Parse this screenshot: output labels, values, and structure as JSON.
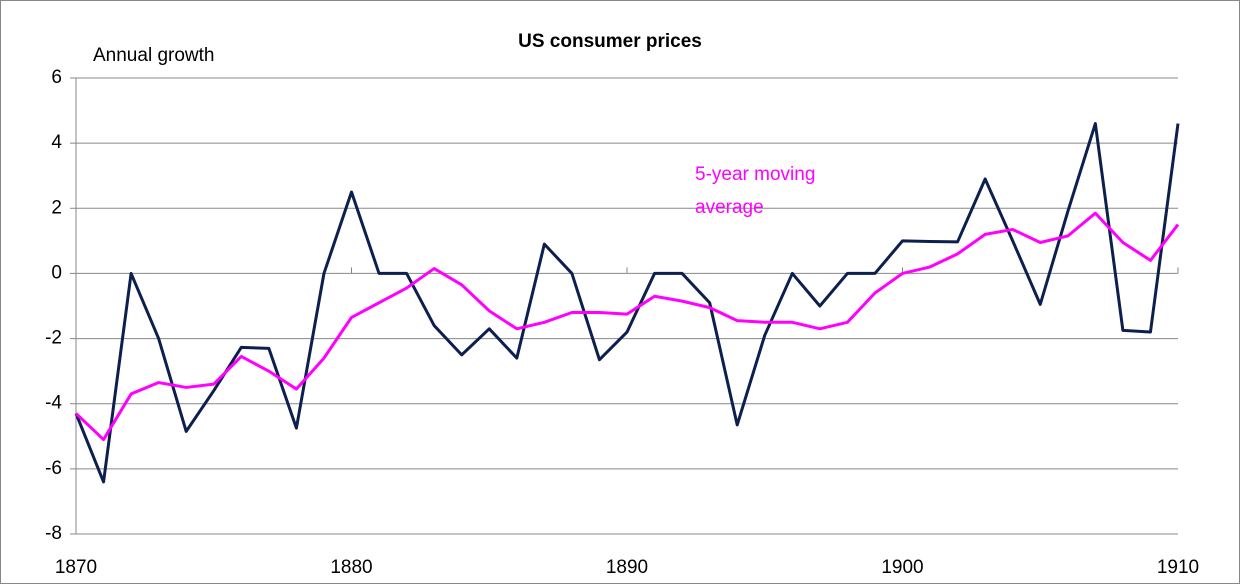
{
  "chart_data": {
    "type": "line",
    "title": "US consumer prices",
    "y_label": "Annual growth",
    "x": [
      1870,
      1871,
      1872,
      1873,
      1874,
      1875,
      1876,
      1877,
      1878,
      1879,
      1880,
      1881,
      1882,
      1883,
      1884,
      1885,
      1886,
      1887,
      1888,
      1889,
      1890,
      1891,
      1892,
      1893,
      1894,
      1895,
      1896,
      1897,
      1898,
      1899,
      1900,
      1901,
      1902,
      1903,
      1904,
      1905,
      1906,
      1907,
      1908,
      1909,
      1910
    ],
    "series": [
      {
        "color": "#0d1f4f",
        "values": [
          -4.3,
          -6.4,
          0,
          -2,
          -4.85,
          -3.6,
          -2.27,
          -2.3,
          -4.75,
          0,
          2.5,
          0,
          0,
          -1.6,
          -2.5,
          -1.7,
          -2.6,
          0.9,
          0,
          -2.65,
          -1.8,
          0,
          0,
          -0.9,
          -4.65,
          -1.9,
          0,
          -1,
          0,
          0,
          1,
          0.98,
          0.97,
          2.9,
          1,
          -0.95,
          1.9,
          4.6,
          -1.75,
          -1.8,
          4.6
        ]
      },
      {
        "name": "5-year moving average",
        "color": "#ff00ff",
        "values": [
          -4.3,
          -5.1,
          -3.7,
          -3.35,
          -3.5,
          -3.4,
          -2.55,
          -3,
          -3.55,
          -2.6,
          -1.35,
          -0.9,
          -0.45,
          0.15,
          -0.35,
          -1.15,
          -1.7,
          -1.5,
          -1.2,
          -1.2,
          -1.25,
          -0.7,
          -0.85,
          -1.05,
          -1.45,
          -1.5,
          -1.5,
          -1.7,
          -1.5,
          -0.6,
          0,
          0.2,
          0.6,
          1.2,
          1.35,
          0.95,
          1.15,
          1.85,
          0.95,
          0.4,
          1.5
        ]
      }
    ],
    "xlim": [
      1870,
      1910
    ],
    "xticks": [
      1870,
      1880,
      1890,
      1900,
      1910
    ],
    "ylim": [
      -8,
      6
    ],
    "yticks": [
      -8,
      -6,
      -4,
      -2,
      0,
      2,
      4,
      6
    ],
    "grid": true
  }
}
